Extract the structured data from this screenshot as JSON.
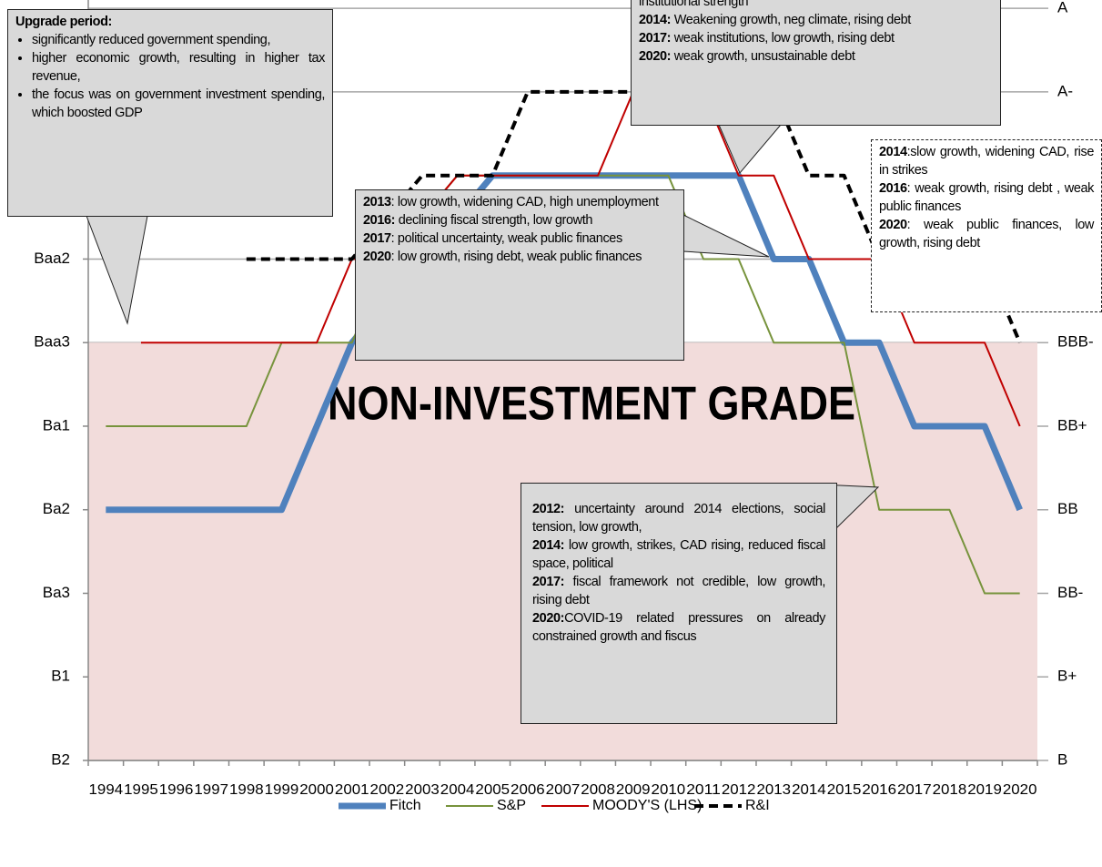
{
  "chart_data": {
    "type": "line",
    "categories": [
      "1994",
      "1995",
      "1996",
      "1997",
      "1998",
      "1999",
      "2000",
      "2001",
      "2002",
      "2003",
      "2004",
      "2005",
      "2006",
      "2007",
      "2008",
      "2009",
      "2010",
      "2011",
      "2012",
      "2013",
      "2014",
      "2015",
      "2016",
      "2017",
      "2018",
      "2019",
      "2020"
    ],
    "series": [
      {
        "name": "Fitch",
        "color": "#4f81bd",
        "line_width": 7,
        "dash": false,
        "values": [
          4,
          4,
          4,
          4,
          4,
          4,
          5,
          6,
          6.5,
          7,
          7.5,
          8,
          8,
          8,
          8,
          8,
          8,
          8,
          8,
          7,
          7,
          6,
          6,
          5,
          5,
          5,
          4
        ]
      },
      {
        "name": "S&P",
        "color": "#77933c",
        "line_width": 2,
        "dash": false,
        "values": [
          5,
          5,
          5,
          5,
          5,
          6,
          6,
          6,
          7,
          7.5,
          8,
          8,
          8,
          8,
          8,
          8,
          8,
          7,
          7,
          6,
          6,
          6,
          4,
          4,
          4,
          3,
          3
        ]
      },
      {
        "name": "MOODY'S (LHS)",
        "color": "#c00000",
        "line_width": 2,
        "dash": false,
        "values": [
          null,
          6,
          6,
          6,
          6,
          6,
          6,
          7,
          7,
          7.5,
          8,
          8,
          8,
          8,
          8,
          9,
          9,
          9,
          8,
          8,
          7,
          7,
          7,
          6,
          6,
          6,
          5
        ]
      },
      {
        "name": "R&I",
        "color": "#000000",
        "line_width": 4,
        "dash": true,
        "values": [
          null,
          null,
          null,
          null,
          7,
          7,
          7,
          7,
          7.5,
          8,
          8,
          8,
          9,
          9,
          9,
          9,
          9,
          9,
          9,
          9,
          8,
          8,
          7,
          7,
          7,
          7,
          6
        ]
      }
    ],
    "ylim": [
      1,
      10.1
    ],
    "yticks": [
      {
        "value": 7,
        "label": "Baa2"
      },
      {
        "value": 6,
        "label": "Baa3"
      },
      {
        "value": 5,
        "label": "Ba1"
      },
      {
        "value": 4,
        "label": "Ba2"
      },
      {
        "value": 3,
        "label": "Ba3"
      },
      {
        "value": 2,
        "label": "B1"
      },
      {
        "value": 1,
        "label": "B2"
      }
    ],
    "y2lim": [
      1,
      10.1
    ],
    "y2ticks": [
      {
        "value": 10,
        "label": "A"
      },
      {
        "value": 9,
        "label": "A-"
      },
      {
        "value": 6,
        "label": "BBB-"
      },
      {
        "value": 5,
        "label": "BB+"
      },
      {
        "value": 4,
        "label": "BB"
      },
      {
        "value": 3,
        "label": "BB-"
      },
      {
        "value": 2,
        "label": "B+"
      },
      {
        "value": 1,
        "label": "B"
      }
    ],
    "grid": true,
    "legend": "bottom",
    "shaded_region": {
      "label": "NON-INVESTMENT GRADE",
      "range": [
        1,
        6
      ],
      "color": "#f2dcdb"
    },
    "annotations": {
      "upgrade": {
        "title": "Upgrade period:",
        "bullets": [
          "significantly reduced government spending,",
          "higher economic growth, resulting in higher tax revenue,",
          "the focus was on government investment spending, which boosted GDP"
        ]
      },
      "moodys": {
        "items": [
          {
            "lead": "",
            "text": "institutional strength"
          },
          {
            "lead": "2014:",
            "text": " Weakening growth, neg climate, rising debt"
          },
          {
            "lead": "2017:",
            "text": " weak institutions, low growth, rising debt"
          },
          {
            "lead": "2020:",
            "text": " weak growth, unsustainable debt"
          }
        ]
      },
      "fitch": {
        "items": [
          {
            "lead": "2013",
            "text": ": low growth, widening CAD, high unemployment"
          },
          {
            "lead": "2016:",
            "text": " declining fiscal strength, low growth"
          },
          {
            "lead": "2017",
            "text": ": political uncertainty, weak public finances"
          },
          {
            "lead": "2020",
            "text": ": low growth, rising debt, weak public finances"
          }
        ]
      },
      "ri": {
        "items": [
          {
            "lead": "2014",
            "text": ":slow growth, widening CAD, rise in strikes"
          },
          {
            "lead": "2016",
            "text": ": weak growth, rising debt , weak public finances"
          },
          {
            "lead": "2020",
            "text": ": weak public finances, low growth, rising debt"
          }
        ]
      },
      "sp": {
        "items": [
          {
            "lead": "2012:",
            "text": " uncertainty around 2014 elections, social tension, low growth,"
          },
          {
            "lead": "2014:",
            "text": " low growth, strikes, CAD rising, reduced fiscal space, political"
          },
          {
            "lead": "2017:",
            "text": " fiscal framework not credible, low growth, rising debt"
          },
          {
            "lead": "2020:",
            "text": "COVID-19 related pressures on already constrained growth and fiscus"
          }
        ]
      }
    }
  }
}
